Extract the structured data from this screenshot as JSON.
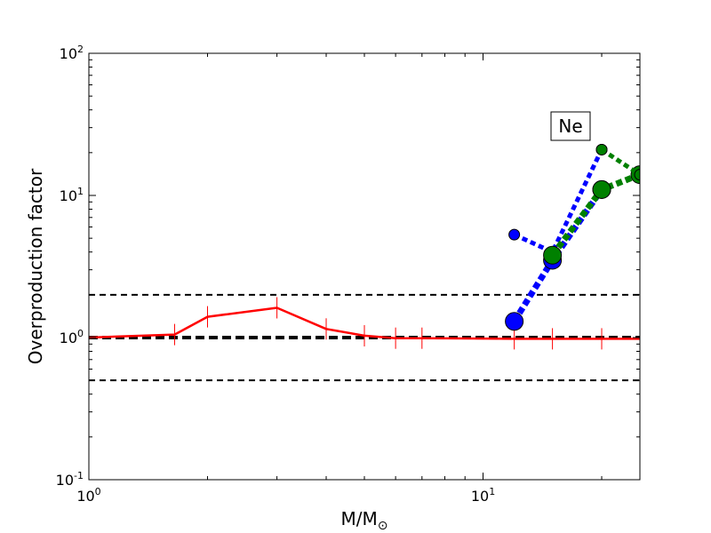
{
  "chart_data": {
    "type": "line",
    "xscale": "log",
    "yscale": "log",
    "xlim": [
      1,
      25
    ],
    "ylim": [
      0.1,
      100
    ],
    "xlabel": {
      "base": "M/M",
      "subscript": "⊙"
    },
    "ylabel": "Overproduction factor",
    "x_ticks": [
      {
        "value": 1,
        "mantissa": "10",
        "exponent": "0"
      },
      {
        "value": 10,
        "mantissa": "10",
        "exponent": "1"
      }
    ],
    "y_ticks": [
      {
        "value": 0.1,
        "mantissa": "10",
        "exponent": "-1"
      },
      {
        "value": 1,
        "mantissa": "10",
        "exponent": "0"
      },
      {
        "value": 10,
        "mantissa": "10",
        "exponent": "1"
      },
      {
        "value": 100,
        "mantissa": "10",
        "exponent": "2"
      }
    ],
    "annotation": "Ne",
    "reference_lines": [
      {
        "y": 2.0,
        "style": "dashed",
        "weight": "thin",
        "color": "#000000"
      },
      {
        "y": 1.0,
        "style": "dashed",
        "weight": "thick",
        "color": "#000000"
      },
      {
        "y": 0.5,
        "style": "dashed",
        "weight": "thin",
        "color": "#000000"
      }
    ],
    "series": [
      {
        "style": "solid",
        "color": "#ff0000",
        "marker": "vertical-tick",
        "x": [
          1.0,
          1.65,
          2.0,
          3.0,
          4.0,
          5.0,
          6.0,
          7.0,
          12.0,
          15.0,
          20.0,
          25.0
        ],
        "y": [
          1.0,
          1.05,
          1.4,
          1.62,
          1.15,
          1.03,
          0.99,
          0.99,
          0.98,
          0.98,
          0.98,
          0.98
        ]
      },
      {
        "style": "dotted",
        "color": "#0000ff",
        "marker": "circle",
        "marker_size": "large",
        "x": [
          12,
          15,
          20
        ],
        "y": [
          1.3,
          3.5,
          11
        ]
      },
      {
        "style": "dotted",
        "color": "#0000ff",
        "marker": "circle",
        "marker_size": "small",
        "x": [
          12,
          15,
          20
        ],
        "y": [
          5.3,
          4.0,
          21
        ]
      },
      {
        "style": "dotted",
        "color": "#008000",
        "marker": "circle",
        "marker_size": "large",
        "x": [
          15,
          20,
          25
        ],
        "y": [
          3.8,
          11,
          14
        ]
      },
      {
        "style": "dotted",
        "color": "#008000",
        "marker": "circle",
        "marker_size": "small",
        "x": [
          20,
          25
        ],
        "y": [
          21,
          14
        ]
      }
    ]
  }
}
